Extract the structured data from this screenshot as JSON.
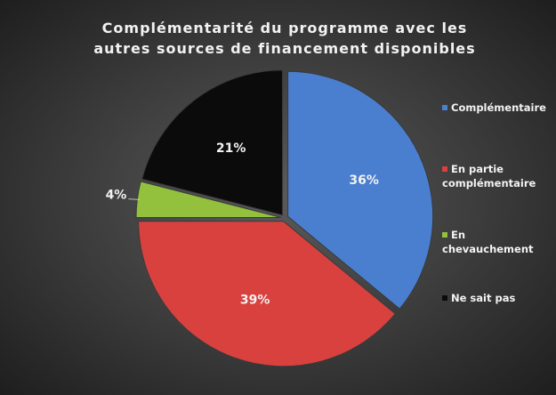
{
  "chart_data": {
    "type": "pie",
    "title": "Complémentarité du programme avec les autres sources de financement disponibles",
    "categories": [
      "Complémentaire",
      "En partie complémentaire",
      "En chevauchement",
      "Ne sait pas"
    ],
    "values": [
      36,
      39,
      4,
      21
    ],
    "value_labels": [
      "36%",
      "39%",
      "4%",
      "21%"
    ],
    "colors": [
      "#4a7fd0",
      "#d9413f",
      "#93c13d",
      "#0b0b0b"
    ],
    "legend": "right"
  }
}
